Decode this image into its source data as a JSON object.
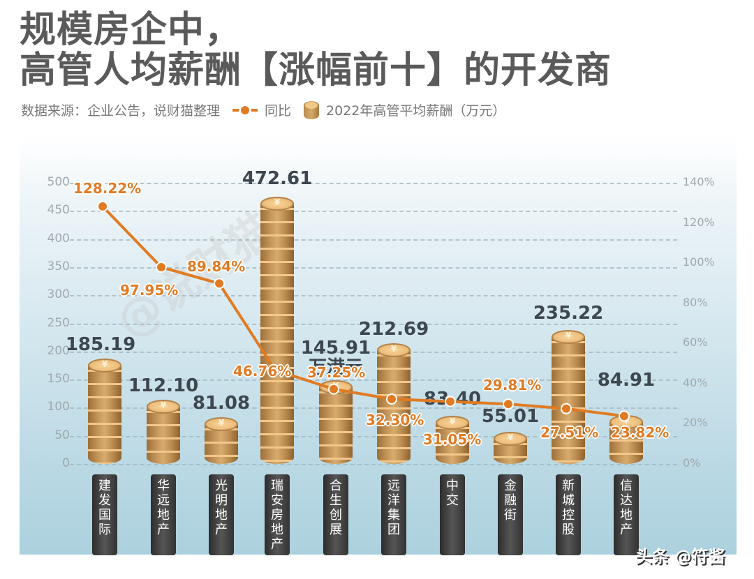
{
  "title": {
    "line1": "规模房企中，",
    "line2": "高管人均薪酬【涨幅前十】的开发商"
  },
  "subtitle": {
    "source": "数据来源：企业公告，说财猫整理",
    "legend_line_label": "同比",
    "legend_bar_label": "2022年高管平均薪酬（万元）"
  },
  "watermark": "@说财猫",
  "credit": "头条 @符酱",
  "colors": {
    "line": "#e07b24",
    "bar": "#c4955a",
    "value_text": "#3e474f",
    "axis_text": "#a0a8ad",
    "category_bg": "#3a3a3a"
  },
  "chart_data": {
    "type": "bar",
    "title": "规模房企中，高管人均薪酬【涨幅前十】的开发商",
    "xlabel": "",
    "ylabel": "2022年高管平均薪酬（万元）",
    "y2label": "同比",
    "ylim": [
      0,
      500
    ],
    "y2lim": [
      0,
      1.4
    ],
    "yticks": [
      "0",
      "50",
      "100",
      "150",
      "200",
      "250",
      "300",
      "350",
      "400",
      "450",
      "500"
    ],
    "y2ticks": [
      "0%",
      "20%",
      "40%",
      "60%",
      "80%",
      "100%",
      "120%",
      "140%"
    ],
    "grid": true,
    "legend_position": "top",
    "categories": [
      "建发国际",
      "华远地产",
      "光明地产",
      "瑞安房地产",
      "合生创展",
      "远洋集团",
      "中交",
      "金融街",
      "新城控股",
      "信达地产"
    ],
    "series": [
      {
        "name": "2022年高管平均薪酬（万元）",
        "type": "bar",
        "axis": "left",
        "values": [
          185.19,
          112.1,
          81.08,
          472.61,
          145.91,
          212.69,
          83.4,
          55.01,
          235.22,
          84.91
        ],
        "labels": [
          "185.19",
          "112.10",
          "81.08",
          "472.61",
          "145.91",
          "212.69",
          "83.40",
          "55.01",
          "235.22",
          "84.91"
        ],
        "notes": [
          "",
          "",
          "",
          "",
          "万港元",
          "",
          "",
          "",
          "",
          ""
        ]
      },
      {
        "name": "同比",
        "type": "line",
        "axis": "right",
        "values": [
          128.22,
          97.95,
          89.84,
          46.76,
          37.25,
          32.3,
          31.05,
          29.81,
          27.51,
          23.82
        ],
        "labels": [
          "128.22%",
          "97.95%",
          "89.84%",
          "46.76%",
          "37.25%",
          "32.30%",
          "31.05%",
          "29.81%",
          "27.51%",
          "23.82%"
        ]
      }
    ]
  }
}
